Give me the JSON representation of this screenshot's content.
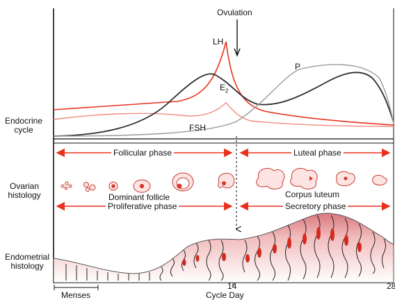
{
  "labels": {
    "ovulation": "Ovulation",
    "lh": "LH",
    "p": "P",
    "e2_base": "E",
    "e2_sub": "2",
    "fsh": "FSH",
    "endocrine_cycle": [
      "Endocrine",
      "cycle"
    ],
    "ovarian_histology": [
      "Ovarian",
      "histology"
    ],
    "endometrial_histology": [
      "Endometrial",
      "histology"
    ],
    "follicular_phase": "Follicular phase",
    "luteal_phase": "Luteal phase",
    "dominant_follicle": "Dominant follicle",
    "corpus_luteum": "Corpus luteum",
    "proliferative_phase": "Proliferative phase",
    "secretory_phase": "Secretory phase",
    "menses": "Menses",
    "cycle_day": "Cycle Day",
    "tick_14": "14",
    "tick_28": "28"
  },
  "colors": {
    "lh": "#e8321e",
    "fsh": "#f08a80",
    "e2": "#2a2a2a",
    "p": "#9a9a9a",
    "arrow": "#e8321e",
    "endometrium": "#f4c7c7",
    "gland": "#d42a1e"
  }
}
